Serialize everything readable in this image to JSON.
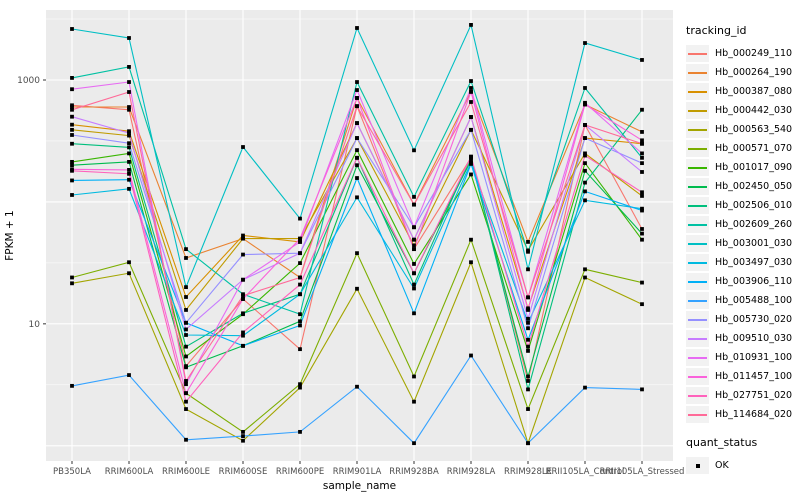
{
  "chart_data": {
    "type": "line",
    "title": "",
    "xlabel": "sample_name",
    "ylabel": "FPKM + 1",
    "y_scale": "log10",
    "ylim": [
      0.75,
      3750
    ],
    "y_tick_labels": [
      "10",
      "1000"
    ],
    "y_tick_values": [
      10,
      1000
    ],
    "y_major_gridlines": [
      1,
      10,
      100,
      1000
    ],
    "y_minor_gridlines": [
      3.162,
      31.62,
      316.2,
      3162
    ],
    "grid": true,
    "legend_position": "right",
    "panel_bg": "#EBEBEB",
    "grid_color": "#FFFFFF",
    "tick_label_color": "#4D4D4D",
    "axis_title_color": "#000000",
    "point_color": "#000000",
    "point_shape": "square",
    "categories": [
      "PB350LA",
      "RRIM600LA",
      "RRIM600LE",
      "RRIM600SE",
      "RRIM600PE",
      "RRIM901LA",
      "RRIM928BA",
      "RRIM928LA",
      "RRIM928LE",
      "RRII105LA_Control",
      "RRII105LA_Stressed"
    ],
    "series": [
      {
        "name": "Hb_000249_110",
        "color": "#F8766D",
        "values": [
          620,
          570,
          4.5,
          16,
          6.2,
          610,
          41,
          230,
          3.4,
          428,
          60
        ]
      },
      {
        "name": "Hb_000264_190",
        "color": "#EA8331",
        "values": [
          600,
          600,
          34.7,
          50,
          24,
          712,
          95,
          800,
          47,
          630,
          375
        ]
      },
      {
        "name": "Hb_000387_080",
        "color": "#D89000",
        "values": [
          430,
          380,
          16.6,
          53,
          47,
          443,
          49,
          497,
          13.4,
          334,
          300
        ]
      },
      {
        "name": "Hb_000442_030",
        "color": "#C09B00",
        "values": [
          390,
          350,
          13,
          50,
          50,
          334,
          44,
          390,
          40,
          250,
          112
        ]
      },
      {
        "name": "Hb_000563_540",
        "color": "#A3A500",
        "values": [
          21.5,
          26,
          2.0,
          1.1,
          3.0,
          19.4,
          2.3,
          32,
          1.05,
          24,
          14.5
        ]
      },
      {
        "name": "Hb_000571_070",
        "color": "#7CAE00",
        "values": [
          24,
          32,
          2.7,
          1.3,
          3.2,
          38,
          3.7,
          49,
          2.0,
          28,
          21.8
        ]
      },
      {
        "name": "Hb_001017_090",
        "color": "#39B600",
        "values": [
          213,
          250,
          5.4,
          12,
          31.5,
          266,
          31,
          168,
          6.0,
          208,
          49
        ]
      },
      {
        "name": "Hb_002450_050",
        "color": "#00BB4E",
        "values": [
          200,
          213,
          4.4,
          6.6,
          10.5,
          200,
          26,
          220,
          3.7,
          180,
          55
        ]
      },
      {
        "name": "Hb_002506_010",
        "color": "#00BF7D",
        "values": [
          300,
          280,
          6.5,
          12.2,
          17.5,
          230,
          21,
          235,
          2.9,
          144,
          570
        ]
      },
      {
        "name": "Hb_002609_260",
        "color": "#00C1A3",
        "values": [
          1040,
          1280,
          41,
          17.5,
          12,
          962,
          110,
          980,
          39,
          860,
          230
        ]
      },
      {
        "name": "Hb_003001_030",
        "color": "#00BFC4",
        "values": [
          2620,
          2210,
          20,
          282,
          73,
          2670,
          265,
          2830,
          28,
          2010,
          1460
        ]
      },
      {
        "name": "Hb_003497_030",
        "color": "#00BAE0",
        "values": [
          114,
          128,
          8.1,
          8.0,
          17.5,
          109,
          19.5,
          210,
          10.2,
          103,
          88
        ]
      },
      {
        "name": "Hb_003906_110",
        "color": "#00B0F6",
        "values": [
          150,
          152,
          10.2,
          6.6,
          9.7,
          157,
          12.2,
          205,
          7.4,
          122,
          85
        ]
      },
      {
        "name": "Hb_005488_100",
        "color": "#35A2FF",
        "values": [
          3.1,
          3.8,
          1.12,
          1.2,
          1.3,
          3.05,
          1.05,
          5.5,
          1.05,
          3.0,
          2.9
        ]
      },
      {
        "name": "Hb_005730_020",
        "color": "#9590FF",
        "values": [
          354,
          303,
          10.2,
          37,
          38,
          334,
          62,
          390,
          9.2,
          334,
          208
        ]
      },
      {
        "name": "Hb_009510_030",
        "color": "#C77CFF",
        "values": [
          500,
          367,
          9.0,
          23,
          38,
          443,
          49,
          497,
          11,
          428,
          176
        ]
      },
      {
        "name": "Hb_010931_100",
        "color": "#E76BF3",
        "values": [
          840,
          962,
          3.2,
          23,
          47,
          827,
          62,
          860,
          16.5,
          650,
          250
        ]
      },
      {
        "name": "Hb_011457_100",
        "color": "#FA62DB",
        "values": [
          185,
          183,
          2.7,
          16,
          50,
          712,
          41,
          800,
          13,
          630,
          320
        ]
      },
      {
        "name": "Hb_027751_020",
        "color": "#FF62BC",
        "values": [
          180,
          170,
          2.3,
          8.5,
          21,
          230,
          26,
          235,
          6.5,
          240,
          120
        ]
      },
      {
        "name": "Hb_114684_020",
        "color": "#FF6A98",
        "values": [
          570,
          797,
          3.4,
          17,
          24,
          610,
          95,
          660,
          16.5,
          428,
          300
        ]
      }
    ],
    "legend": {
      "color_title": "tracking_id",
      "shape_title": "quant_status",
      "shape_items": [
        {
          "label": "OK"
        }
      ]
    }
  }
}
